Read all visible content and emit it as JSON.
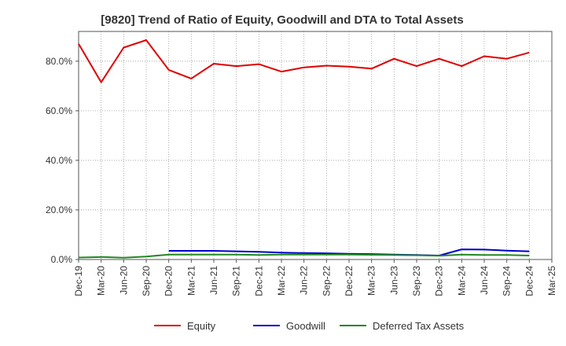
{
  "chart_data": {
    "type": "line",
    "title": "[9820]  Trend of Ratio of Equity, Goodwill and DTA to Total Assets",
    "x_ticks": [
      "Dec-19",
      "Mar-20",
      "Jun-20",
      "Sep-20",
      "Dec-20",
      "Mar-21",
      "Jun-21",
      "Sep-21",
      "Dec-21",
      "Mar-22",
      "Jun-22",
      "Sep-22",
      "Dec-22",
      "Mar-23",
      "Jun-23",
      "Sep-23",
      "Dec-23",
      "Mar-24",
      "Jun-24",
      "Sep-24",
      "Dec-24",
      "Mar-25"
    ],
    "y_ticks": [
      "0.0%",
      "20.0%",
      "40.0%",
      "60.0%",
      "80.0%"
    ],
    "y_tick_values": [
      0,
      20,
      40,
      60,
      80
    ],
    "ylim": [
      0,
      92
    ],
    "grid": true,
    "legend_position": "bottom",
    "series": [
      {
        "name": "Equity",
        "color": "#e00000",
        "x": [
          "Dec-19",
          "Mar-20",
          "Jun-20",
          "Sep-20",
          "Dec-20",
          "Mar-21",
          "Jun-21",
          "Sep-21",
          "Dec-21",
          "Mar-22",
          "Jun-22",
          "Sep-22",
          "Dec-22",
          "Mar-23",
          "Jun-23",
          "Sep-23",
          "Dec-23",
          "Mar-24",
          "Jun-24",
          "Sep-24",
          "Dec-24"
        ],
        "values": [
          87.0,
          71.5,
          85.5,
          88.5,
          76.5,
          73.0,
          79.0,
          78.0,
          78.8,
          75.8,
          77.5,
          78.2,
          77.8,
          77.0,
          81.0,
          78.0,
          81.0,
          78.0,
          82.0,
          81.0,
          83.5
        ]
      },
      {
        "name": "Goodwill",
        "color": "#0000cc",
        "x": [
          "Dec-20",
          "Mar-21",
          "Jun-21",
          "Sep-21",
          "Dec-21",
          "Mar-22",
          "Jun-22",
          "Sep-22",
          "Dec-22",
          "Mar-23",
          "Jun-23",
          "Sep-23",
          "Dec-23",
          "Mar-24",
          "Jun-24",
          "Sep-24",
          "Dec-24"
        ],
        "values": [
          3.5,
          3.5,
          3.5,
          3.3,
          3.1,
          2.8,
          2.6,
          2.5,
          2.3,
          2.2,
          2.0,
          1.8,
          1.6,
          4.1,
          4.0,
          3.6,
          3.3
        ]
      },
      {
        "name": "Deferred Tax Assets",
        "color": "#228822",
        "x": [
          "Dec-19",
          "Mar-20",
          "Jun-20",
          "Sep-20",
          "Dec-20",
          "Mar-21",
          "Jun-21",
          "Sep-21",
          "Dec-21",
          "Mar-22",
          "Jun-22",
          "Sep-22",
          "Dec-22",
          "Mar-23",
          "Jun-23",
          "Sep-23",
          "Dec-23",
          "Mar-24",
          "Jun-24",
          "Sep-24",
          "Dec-24"
        ],
        "values": [
          0.8,
          1.0,
          0.7,
          1.2,
          2.0,
          2.0,
          2.0,
          2.0,
          1.8,
          2.0,
          2.0,
          2.0,
          2.0,
          1.9,
          1.8,
          1.7,
          1.5,
          2.0,
          1.8,
          1.8,
          1.6
        ]
      }
    ]
  }
}
